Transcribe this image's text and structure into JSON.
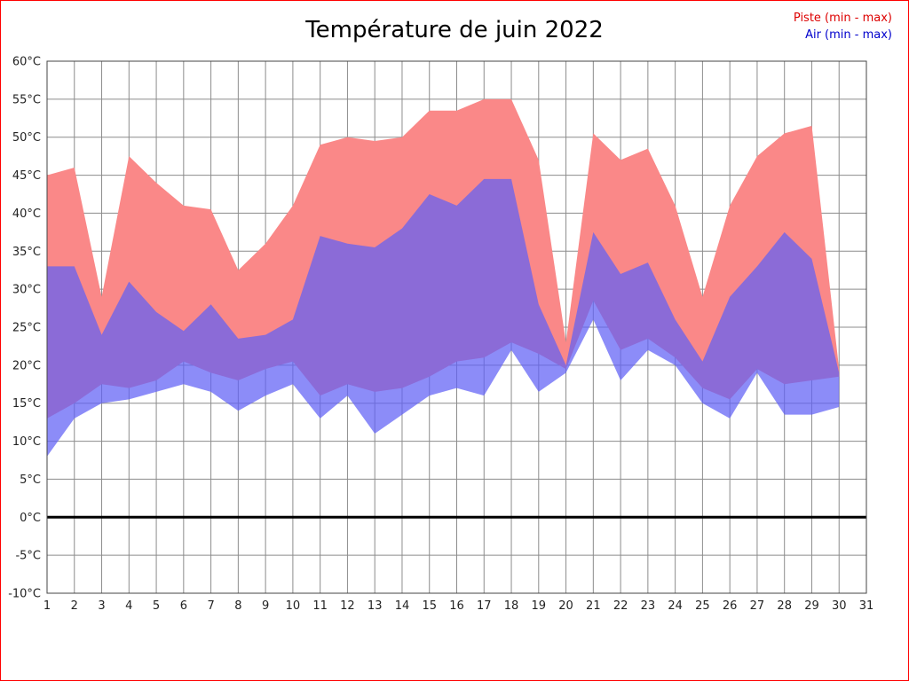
{
  "page": {
    "border_color": "#ff0000",
    "background": "#ffffff"
  },
  "header": {
    "title": "Température de juin 2022"
  },
  "legend": {
    "items": [
      {
        "label": "Piste (min - max)",
        "color": "#dd0000"
      },
      {
        "label": "Air (min - max)",
        "color": "#0000cc"
      }
    ]
  },
  "chart_data": {
    "type": "area",
    "title": "Température de juin 2022",
    "xlabel": "",
    "ylabel": "",
    "xlim": [
      1,
      31
    ],
    "ylim": [
      -10,
      60
    ],
    "grid": true,
    "legend_position": "top-right",
    "x": [
      1,
      2,
      3,
      4,
      5,
      6,
      7,
      8,
      9,
      10,
      11,
      12,
      13,
      14,
      15,
      16,
      17,
      18,
      19,
      20,
      21,
      22,
      23,
      24,
      25,
      26,
      27,
      28,
      29,
      30
    ],
    "x_tick_labels": [
      "1",
      "2",
      "3",
      "4",
      "5",
      "6",
      "7",
      "8",
      "9",
      "10",
      "11",
      "12",
      "13",
      "14",
      "15",
      "16",
      "17",
      "18",
      "19",
      "20",
      "21",
      "22",
      "23",
      "24",
      "25",
      "26",
      "27",
      "28",
      "29",
      "30",
      "31"
    ],
    "y_ticks": [
      {
        "value": 60,
        "label": "60°C"
      },
      {
        "value": 55,
        "label": "55°C"
      },
      {
        "value": 50,
        "label": "50°C"
      },
      {
        "value": 45,
        "label": "45°C"
      },
      {
        "value": 40,
        "label": "40°C"
      },
      {
        "value": 35,
        "label": "35°C"
      },
      {
        "value": 30,
        "label": "30°C"
      },
      {
        "value": 25,
        "label": "25°C"
      },
      {
        "value": 20,
        "label": "20°C"
      },
      {
        "value": 15,
        "label": "15°C"
      },
      {
        "value": 10,
        "label": "10°C"
      },
      {
        "value": 5,
        "label": "5°C"
      },
      {
        "value": 0,
        "label": "0°C"
      },
      {
        "value": -5,
        "label": "-5°C"
      },
      {
        "value": -10,
        "label": "-10°C"
      }
    ],
    "series": [
      {
        "name": "Piste max",
        "values": [
          45,
          46,
          29,
          47.5,
          44,
          41,
          40.5,
          32.5,
          36,
          41,
          49,
          50,
          49.5,
          50,
          53.5,
          53.5,
          55,
          55,
          47,
          23,
          50.5,
          47,
          48.5,
          41,
          29,
          41,
          47.5,
          50.5,
          51.5,
          19.5
        ]
      },
      {
        "name": "Piste min",
        "values": [
          13,
          15,
          17.5,
          17,
          18,
          20.5,
          19,
          18,
          19.5,
          20.5,
          16,
          17.5,
          16.5,
          17,
          18.5,
          20.5,
          21,
          23,
          21.5,
          19.5,
          28.5,
          22,
          23.5,
          21,
          17,
          15.5,
          19.5,
          17.5,
          18,
          18.5
        ]
      },
      {
        "name": "Air max",
        "values": [
          33,
          33,
          24,
          31,
          27,
          24.5,
          28,
          23.5,
          24,
          26,
          37,
          36,
          35.5,
          38,
          42.5,
          41,
          44.5,
          44.5,
          28,
          20,
          37.5,
          32,
          33.5,
          26,
          20.5,
          29,
          33,
          37.5,
          34,
          19
        ]
      },
      {
        "name": "Air min",
        "values": [
          8,
          13,
          15,
          15.5,
          16.5,
          17.5,
          16.5,
          14,
          16,
          17.5,
          13,
          16,
          11,
          13.5,
          16,
          17,
          16,
          22,
          16.5,
          19,
          26,
          18,
          22,
          20,
          15,
          13,
          19,
          13.5,
          13.5,
          14.5
        ]
      }
    ],
    "colors": {
      "piste_fill": "#fa8888",
      "air_fill": "rgba(95,95,245,0.72)",
      "grid": "#8c8c8c",
      "frame": "#444444",
      "zero_line": "#000000",
      "tick_text": "#222222"
    }
  }
}
